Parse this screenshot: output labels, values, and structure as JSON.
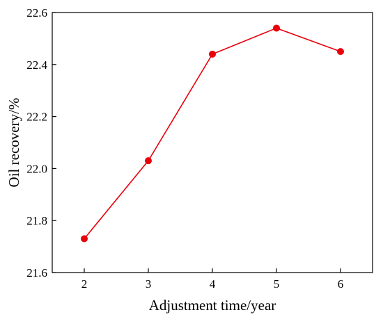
{
  "chart_data": {
    "type": "line",
    "title": "",
    "xlabel": "Adjustment time/year",
    "ylabel": "Oil recovery/%",
    "x": [
      2,
      3,
      4,
      5,
      6
    ],
    "xticks": [
      "2",
      "3",
      "4",
      "5",
      "6"
    ],
    "xlim": [
      1.5,
      6.5
    ],
    "ylim": [
      21.6,
      22.6
    ],
    "yticks": [
      "21.6",
      "21.8",
      "22.0",
      "22.2",
      "22.4",
      "22.6"
    ],
    "grid": false,
    "series": [
      {
        "name": "",
        "color": "#e8000b",
        "marker": "circle",
        "values": [
          21.73,
          22.03,
          22.44,
          22.54,
          22.45
        ]
      }
    ]
  }
}
